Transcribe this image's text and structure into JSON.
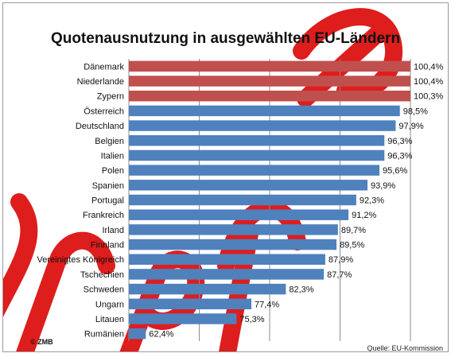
{
  "chart_data": {
    "type": "bar",
    "orientation": "horizontal",
    "title": "Quotenausnutzung in ausgewählten EU-Ländern",
    "categories": [
      "Dänemark",
      "Niederlande",
      "Zypern",
      "Österreich",
      "Deutschland",
      "Belgien",
      "Italien",
      "Polen",
      "Spanien",
      "Portugal",
      "Frankreich",
      "Irland",
      "Finnland",
      "Vereinigtes Königreich",
      "Tschechien",
      "Schweden",
      "Ungarn",
      "Litauen",
      "Rumänien"
    ],
    "values": [
      100.4,
      100.4,
      100.3,
      98.5,
      97.9,
      96.3,
      96.3,
      95.6,
      93.9,
      92.3,
      91.2,
      89.7,
      89.5,
      87.9,
      87.7,
      82.3,
      77.4,
      75.3,
      62.4
    ],
    "value_labels": [
      "100,4%",
      "100,4%",
      "100,3%",
      "98,5%",
      "97,9%",
      "96,3%",
      "96,3%",
      "95,6%",
      "93,9%",
      "92,3%",
      "91,2%",
      "89,7%",
      "89,5%",
      "87,9%",
      "87,7%",
      "82,3%",
      "77,4%",
      "75,3%",
      "62,4%"
    ],
    "highlight_count": 3,
    "xlim": [
      60,
      100
    ],
    "grid": true,
    "colors": {
      "highlight": "#c0504d",
      "bar": "#4f81bd",
      "watermark": "#dd1111"
    }
  },
  "footer": {
    "copyright": "© ZMB",
    "source": "Quelle: EU-Kommission"
  }
}
